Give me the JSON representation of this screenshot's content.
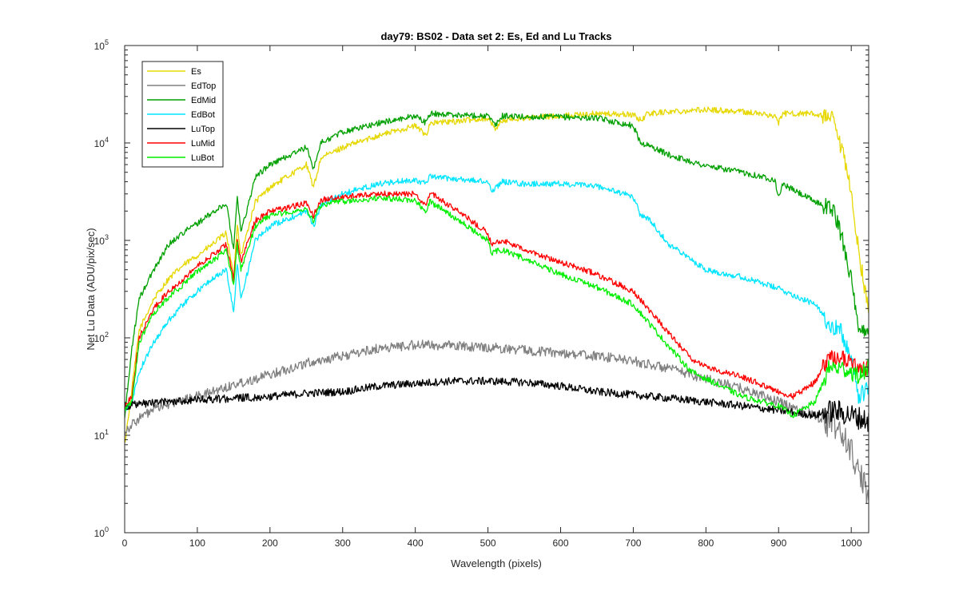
{
  "chart_data": {
    "type": "line",
    "title": "day79: BS02 - Data set 2: Es, Ed and Lu Tracks",
    "xlabel": "Wavelength (pixels)",
    "ylabel": "Net Lu Data (ADU/pix/sec)",
    "xlim": [
      0,
      1024
    ],
    "ylim": [
      1,
      100000
    ],
    "yscale": "log",
    "xticks": [
      0,
      100,
      200,
      300,
      400,
      500,
      600,
      700,
      800,
      900,
      1000
    ],
    "yticks": [
      {
        "base": "10",
        "exp": "0",
        "value": 1
      },
      {
        "base": "10",
        "exp": "1",
        "value": 10
      },
      {
        "base": "10",
        "exp": "2",
        "value": 100
      },
      {
        "base": "10",
        "exp": "3",
        "value": 1000
      },
      {
        "base": "10",
        "exp": "4",
        "value": 10000
      },
      {
        "base": "10",
        "exp": "5",
        "value": 100000
      }
    ],
    "grid": false,
    "legend_position": "top-left",
    "series": [
      {
        "name": "Es",
        "color": "#e6d800",
        "noise": 0.03,
        "x": [
          0,
          10,
          20,
          40,
          60,
          80,
          100,
          120,
          140,
          150,
          155,
          160,
          180,
          200,
          250,
          260,
          270,
          300,
          350,
          400,
          415,
          420,
          450,
          500,
          510,
          520,
          550,
          600,
          650,
          700,
          710,
          720,
          750,
          800,
          850,
          895,
          900,
          905,
          950,
          975,
          985,
          990,
          1000,
          1010,
          1024
        ],
        "y": [
          8,
          30,
          120,
          250,
          400,
          550,
          700,
          900,
          1200,
          400,
          1500,
          700,
          2500,
          3500,
          6000,
          3500,
          7000,
          9000,
          12000,
          15000,
          12000,
          16000,
          16500,
          18000,
          14000,
          17000,
          18000,
          19000,
          20000,
          19500,
          17000,
          20000,
          21000,
          22000,
          21000,
          19000,
          16000,
          20000,
          20000,
          17000,
          9000,
          7000,
          3000,
          800,
          180
        ]
      },
      {
        "name": "EdTop",
        "color": "#808080",
        "noise": 0.05,
        "x": [
          0,
          20,
          50,
          100,
          150,
          200,
          250,
          300,
          350,
          400,
          450,
          500,
          550,
          600,
          650,
          700,
          750,
          800,
          850,
          900,
          950,
          980,
          1000,
          1010,
          1024
        ],
        "y": [
          11,
          15,
          20,
          25,
          33,
          42,
          55,
          65,
          78,
          85,
          83,
          80,
          75,
          70,
          65,
          58,
          48,
          38,
          30,
          22,
          16,
          12,
          7,
          4,
          2.5
        ]
      },
      {
        "name": "EdMid",
        "color": "#00a000",
        "noise": 0.03,
        "x": [
          0,
          10,
          20,
          40,
          60,
          80,
          100,
          120,
          140,
          150,
          155,
          160,
          180,
          200,
          250,
          260,
          270,
          300,
          350,
          400,
          415,
          420,
          450,
          500,
          510,
          520,
          550,
          600,
          650,
          700,
          710,
          720,
          750,
          800,
          850,
          895,
          900,
          905,
          950,
          975,
          985,
          990,
          1000,
          1010,
          1024
        ],
        "y": [
          15,
          80,
          250,
          500,
          900,
          1200,
          1500,
          1900,
          2400,
          800,
          3000,
          1200,
          4500,
          6000,
          9000,
          5500,
          10000,
          13000,
          16000,
          19000,
          16000,
          20000,
          19500,
          19000,
          15000,
          19000,
          18500,
          18500,
          18000,
          15000,
          10000,
          9500,
          7500,
          5800,
          5000,
          4200,
          2700,
          3800,
          2500,
          2100,
          1200,
          900,
          400,
          110,
          130
        ]
      },
      {
        "name": "EdBot",
        "color": "#00e5ff",
        "noise": 0.03,
        "x": [
          0,
          10,
          20,
          40,
          60,
          80,
          100,
          120,
          140,
          150,
          155,
          160,
          180,
          200,
          250,
          260,
          270,
          300,
          350,
          400,
          415,
          420,
          450,
          500,
          505,
          520,
          550,
          600,
          650,
          700,
          710,
          720,
          750,
          800,
          850,
          900,
          950,
          970,
          985,
          1000,
          1010,
          1024
        ],
        "y": [
          18,
          22,
          45,
          90,
          150,
          220,
          300,
          400,
          500,
          180,
          600,
          250,
          1000,
          1400,
          2000,
          1400,
          2300,
          3000,
          3800,
          4200,
          3800,
          4500,
          4300,
          4000,
          3200,
          4000,
          3800,
          3800,
          3600,
          2800,
          1800,
          1700,
          900,
          500,
          420,
          320,
          220,
          140,
          120,
          60,
          25,
          30
        ]
      },
      {
        "name": "LuTop",
        "color": "#000000",
        "noise": 0.04,
        "x": [
          0,
          50,
          100,
          150,
          200,
          250,
          300,
          350,
          400,
          450,
          500,
          550,
          600,
          650,
          700,
          750,
          800,
          850,
          900,
          950,
          975,
          1000,
          1024
        ],
        "y": [
          20,
          22,
          23,
          24,
          25,
          27,
          28,
          32,
          34,
          36,
          36,
          35,
          32,
          28,
          26,
          24,
          22,
          20,
          18,
          16,
          18,
          16,
          14
        ]
      },
      {
        "name": "LuMid",
        "color": "#ff0000",
        "noise": 0.03,
        "x": [
          0,
          10,
          20,
          40,
          60,
          80,
          100,
          120,
          140,
          150,
          155,
          160,
          180,
          200,
          250,
          260,
          270,
          300,
          350,
          400,
          415,
          420,
          450,
          500,
          505,
          520,
          550,
          600,
          650,
          700,
          750,
          780,
          800,
          850,
          900,
          920,
          950,
          970,
          990,
          1000,
          1010,
          1024
        ],
        "y": [
          20,
          25,
          100,
          200,
          300,
          400,
          550,
          700,
          900,
          400,
          1000,
          600,
          1600,
          2000,
          2400,
          1800,
          2600,
          2800,
          3000,
          3000,
          2200,
          3100,
          2200,
          1200,
          900,
          1000,
          800,
          600,
          450,
          300,
          110,
          60,
          50,
          40,
          28,
          25,
          35,
          65,
          60,
          55,
          45,
          50
        ]
      },
      {
        "name": "LuBot",
        "color": "#00ee00",
        "noise": 0.03,
        "x": [
          0,
          10,
          20,
          40,
          60,
          80,
          100,
          120,
          140,
          150,
          155,
          160,
          180,
          200,
          250,
          260,
          270,
          300,
          350,
          400,
          415,
          420,
          450,
          500,
          505,
          520,
          550,
          600,
          650,
          700,
          750,
          780,
          800,
          850,
          900,
          920,
          950,
          970,
          990,
          1000,
          1010,
          1024
        ],
        "y": [
          18,
          22,
          90,
          180,
          260,
          350,
          480,
          600,
          800,
          350,
          900,
          500,
          1400,
          1800,
          2100,
          1600,
          2300,
          2500,
          2700,
          2600,
          1900,
          2500,
          1800,
          1000,
          750,
          800,
          650,
          450,
          330,
          220,
          80,
          45,
          38,
          25,
          20,
          16,
          22,
          50,
          48,
          45,
          40,
          50
        ]
      }
    ]
  }
}
